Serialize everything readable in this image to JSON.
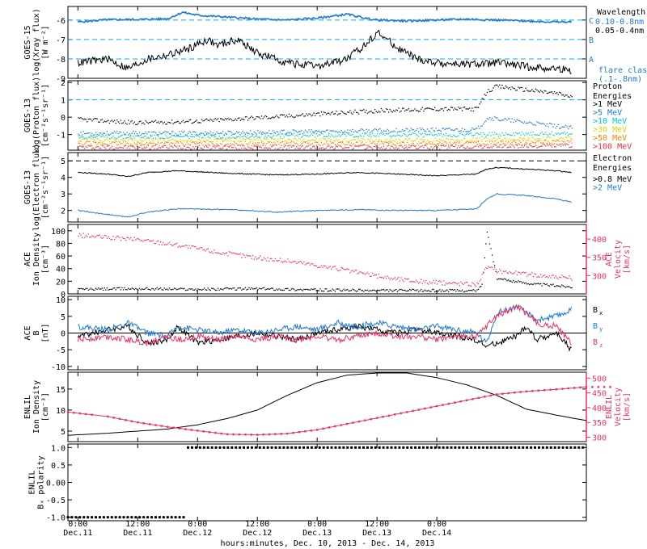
{
  "chart_data": [
    {
      "type": "line",
      "panel": "xray",
      "ylabel_lines": [
        "GOES-15",
        "log(Xray flux)",
        "[W m⁻²]"
      ],
      "ylim": [
        -9,
        -5.3
      ],
      "yticks": [
        "-6",
        "-7",
        "-8",
        "-9"
      ],
      "ytick_values": [
        -6,
        -7,
        -8,
        -9
      ],
      "flare_levels": [
        {
          "label": "C",
          "value": -6
        },
        {
          "label": "B",
          "value": -7
        },
        {
          "label": "A",
          "value": -8
        }
      ],
      "legend_title": "Wavelength",
      "legend": [
        {
          "label": "0.10-0.8nm",
          "color": "#1e78d2"
        },
        {
          "label": "0.05-0.4nm",
          "color": "#000000"
        },
        {
          "label": "flare class",
          "color": "#1e78d2"
        },
        {
          "label": "(.1-.8nm)",
          "color": "#1e78d2"
        }
      ],
      "series": [
        {
          "color": "#1e78d2",
          "x": [
            0,
            6,
            12,
            18,
            21,
            24,
            30,
            36,
            42,
            48,
            54,
            58,
            60,
            66,
            72,
            78,
            84,
            90,
            96,
            99
          ],
          "y": [
            -6.1,
            -5.98,
            -5.97,
            -5.93,
            -5.6,
            -5.75,
            -5.85,
            -5.95,
            -6.0,
            -5.9,
            -5.7,
            -5.92,
            -6.0,
            -6.05,
            -6.0,
            -5.95,
            -6.0,
            -6.05,
            -6.1,
            -6.1
          ]
        },
        {
          "color": "#000000",
          "x": [
            0,
            6,
            10,
            14,
            18,
            22,
            26,
            28,
            32,
            36,
            42,
            48,
            54,
            58,
            60,
            64,
            68,
            72,
            78,
            84,
            90,
            96,
            99
          ],
          "y": [
            -8.2,
            -8.0,
            -8.5,
            -8.0,
            -7.8,
            -7.5,
            -7.0,
            -7.3,
            -7.0,
            -7.7,
            -8.2,
            -8.4,
            -8.0,
            -7.2,
            -6.6,
            -7.4,
            -8.0,
            -8.2,
            -8.3,
            -8.2,
            -8.4,
            -8.5,
            -8.6
          ]
        }
      ]
    },
    {
      "type": "scatter",
      "panel": "protons",
      "ylabel_lines": [
        "GOES-13",
        "log(Proton flux)",
        "[cm⁻²s⁻¹sr⁻¹]"
      ],
      "ylim": [
        -1.9,
        2.1
      ],
      "yticks": [
        "2",
        "1",
        "0",
        "-1"
      ],
      "ytick_values": [
        2,
        1,
        0,
        -1
      ],
      "threshold": 1,
      "legend_title_lines": [
        "Proton",
        "Energies"
      ],
      "legend": [
        {
          "label": ">1 MeV",
          "color": "#000000"
        },
        {
          "label": ">5 MeV",
          "color": "#1e78d2"
        },
        {
          "label": ">10 MeV",
          "color": "#00c8c8"
        },
        {
          "label": ">30 MeV",
          "color": "#e0d000"
        },
        {
          "label": ">50 MeV",
          "color": "#ff8000"
        },
        {
          "label": ">100 MeV",
          "color": "#ee3040"
        }
      ],
      "series": [
        {
          "color": "#000000",
          "x": [
            0,
            12,
            24,
            36,
            48,
            60,
            72,
            80,
            82,
            84,
            90,
            96,
            99
          ],
          "y": [
            -0.1,
            -0.3,
            -0.2,
            0.0,
            0.2,
            0.4,
            0.5,
            0.5,
            1.5,
            1.8,
            1.6,
            1.4,
            1.2
          ]
        },
        {
          "color": "#1e78d2",
          "x": [
            0,
            24,
            48,
            72,
            80,
            82,
            99
          ],
          "y": [
            -0.9,
            -0.9,
            -0.8,
            -0.7,
            -0.7,
            0.0,
            -0.6
          ]
        },
        {
          "color": "#00c8c8",
          "x": [
            0,
            24,
            48,
            72,
            99
          ],
          "y": [
            -1.1,
            -1.1,
            -1.0,
            -1.0,
            -0.9
          ]
        },
        {
          "color": "#e0d000",
          "x": [
            0,
            24,
            48,
            72,
            99
          ],
          "y": [
            -1.3,
            -1.3,
            -1.3,
            -1.3,
            -1.2
          ]
        },
        {
          "color": "#ff8000",
          "x": [
            0,
            24,
            48,
            72,
            99
          ],
          "y": [
            -1.5,
            -1.5,
            -1.5,
            -1.5,
            -1.4
          ]
        },
        {
          "color": "#ee3040",
          "x": [
            0,
            24,
            48,
            72,
            99
          ],
          "y": [
            -1.7,
            -1.7,
            -1.7,
            -1.7,
            -1.6
          ]
        }
      ]
    },
    {
      "type": "line",
      "panel": "electrons",
      "ylabel_lines": [
        "GOES-13",
        "log(Electron flux)",
        "[cm⁻²s⁻¹sr⁻¹]"
      ],
      "ylim": [
        1.3,
        5.5
      ],
      "yticks": [
        "5",
        "4",
        "3",
        "2"
      ],
      "ytick_values": [
        5,
        4,
        3,
        2
      ],
      "threshold": 5,
      "legend_title_lines": [
        "Electron",
        "Energies"
      ],
      "legend": [
        {
          "label": ">0.8 MeV",
          "color": "#000000"
        },
        {
          "label": ">2 MeV",
          "color": "#1e78d2"
        }
      ],
      "series": [
        {
          "color": "#000000",
          "x": [
            0,
            6,
            10,
            14,
            20,
            30,
            40,
            48,
            56,
            64,
            72,
            80,
            82,
            84,
            90,
            96,
            99
          ],
          "y": [
            4.3,
            4.2,
            4.05,
            4.3,
            4.4,
            4.25,
            4.15,
            4.2,
            4.3,
            4.2,
            4.1,
            4.2,
            4.5,
            4.6,
            4.5,
            4.4,
            4.3
          ]
        },
        {
          "color": "#1e78d2",
          "x": [
            0,
            5,
            10,
            14,
            20,
            30,
            40,
            48,
            56,
            64,
            72,
            80,
            82,
            84,
            90,
            96,
            99
          ],
          "y": [
            2.0,
            1.8,
            1.6,
            1.9,
            2.1,
            2.05,
            1.9,
            2.0,
            2.05,
            2.0,
            2.0,
            2.1,
            2.7,
            3.0,
            2.9,
            2.7,
            2.5
          ]
        }
      ]
    },
    {
      "type": "scatter",
      "panel": "ace_plasma",
      "ylabel_lines": [
        "ACE",
        "Ion Density",
        "[cm⁻³]"
      ],
      "ylim": [
        0,
        110
      ],
      "yticks": [
        "100",
        "80",
        "60",
        "40",
        "20",
        "0"
      ],
      "ytick_values": [
        100,
        80,
        60,
        40,
        20,
        0
      ],
      "right_ylabel_lines": [
        "ACE",
        "Velocity",
        "[km/s]"
      ],
      "right_ylim": [
        250,
        440
      ],
      "right_yticks": [
        "400",
        "350",
        "300"
      ],
      "right_ytick_values": [
        400,
        350,
        300
      ],
      "series": [
        {
          "name": "density",
          "color": "#000000",
          "axis": "left",
          "x": [
            0,
            12,
            24,
            36,
            48,
            60,
            72,
            80,
            81,
            82,
            84,
            88,
            92,
            96,
            99
          ],
          "y": [
            8,
            9,
            8,
            9,
            7,
            6,
            6,
            6,
            15,
            100,
            25,
            20,
            16,
            14,
            12
          ]
        },
        {
          "name": "velocity",
          "color": "#ee3060",
          "axis": "right",
          "x": [
            0,
            6,
            12,
            20,
            28,
            36,
            44,
            52,
            58,
            60,
            64,
            70,
            76,
            80,
            82,
            84,
            90,
            96,
            99
          ],
          "y": [
            412,
            405,
            400,
            385,
            365,
            350,
            338,
            320,
            305,
            300,
            292,
            283,
            280,
            278,
            325,
            315,
            305,
            298,
            295
          ]
        }
      ]
    },
    {
      "type": "line",
      "panel": "ace_mag",
      "ylabel_lines": [
        "ACE",
        "B",
        "[nT]"
      ],
      "ylim": [
        -11,
        11
      ],
      "yticks": [
        "10",
        "5",
        "0",
        "-5",
        "-10"
      ],
      "ytick_values": [
        10,
        5,
        0,
        -5,
        -10
      ],
      "zero_line": 0,
      "legend": [
        {
          "label": "B",
          "sub": "x",
          "color": "#000000"
        },
        {
          "label": "B",
          "sub": "y",
          "color": "#1e78d2"
        },
        {
          "label": "B",
          "sub": "z",
          "color": "#ee3060"
        }
      ],
      "series": [
        {
          "color": "#000000",
          "x": [
            0,
            6,
            10,
            14,
            18,
            20,
            24,
            28,
            32,
            36,
            40,
            44,
            48,
            52,
            56,
            60,
            64,
            68,
            72,
            76,
            80,
            82,
            84,
            88,
            90,
            92,
            96,
            99
          ],
          "y": [
            -1,
            1,
            2,
            -3,
            -2,
            2,
            -3,
            -2,
            -1,
            0,
            -1,
            -2,
            0,
            1,
            2,
            1,
            0,
            1,
            0,
            -1,
            -2,
            -4,
            -3,
            -1,
            2,
            -2,
            0,
            -5
          ]
        },
        {
          "color": "#1e78d2",
          "x": [
            0,
            6,
            10,
            14,
            18,
            20,
            24,
            28,
            32,
            36,
            40,
            44,
            48,
            52,
            56,
            60,
            64,
            68,
            72,
            76,
            80,
            82,
            84,
            88,
            90,
            92,
            96,
            99
          ],
          "y": [
            2,
            1,
            3,
            0,
            -1,
            2,
            1,
            0,
            1,
            0,
            1,
            2,
            1,
            3,
            2,
            3,
            2,
            1,
            2,
            1,
            0,
            -3,
            6,
            8,
            6,
            4,
            5,
            7
          ]
        },
        {
          "color": "#ee3060",
          "x": [
            0,
            6,
            10,
            14,
            18,
            20,
            24,
            28,
            32,
            36,
            40,
            44,
            48,
            52,
            56,
            60,
            64,
            68,
            72,
            76,
            80,
            82,
            84,
            88,
            90,
            92,
            96,
            99
          ],
          "y": [
            -2,
            -1,
            -2,
            -3,
            -1,
            -2,
            -1,
            -2,
            -1,
            -2,
            -1,
            -2,
            -1,
            -2,
            -1,
            0,
            -1,
            -1,
            -2,
            -1,
            -1,
            2,
            5,
            8,
            6,
            3,
            2,
            -3
          ]
        }
      ]
    },
    {
      "type": "line",
      "panel": "enlil_plasma",
      "ylabel_lines": [
        "ENLIL",
        "Ion Density",
        "[cm⁻³]"
      ],
      "ylim": [
        2.5,
        19
      ],
      "yticks": [
        "15",
        "10",
        "5"
      ],
      "ytick_values": [
        15,
        10,
        5
      ],
      "right_ylabel_lines": [
        "ENLIL",
        "Velocity",
        "[km/s]"
      ],
      "right_ylim": [
        285,
        520
      ],
      "right_yticks": [
        "500",
        "450",
        "400",
        "350",
        "300"
      ],
      "right_ytick_values": [
        500,
        450,
        400,
        350,
        300
      ],
      "series": [
        {
          "name": "density",
          "color": "#000000",
          "axis": "left",
          "x": [
            -2,
            6,
            12,
            18,
            24,
            30,
            36,
            42,
            48,
            54,
            60,
            66,
            72,
            78,
            84,
            90,
            96,
            102
          ],
          "y": [
            4.0,
            4.5,
            5.0,
            5.5,
            6.5,
            8.0,
            10.0,
            13.5,
            16.5,
            18.3,
            18.8,
            18.8,
            17.7,
            16.0,
            13.5,
            10.2,
            8.8,
            7.5
          ]
        },
        {
          "name": "velocity",
          "color": "#ee3060",
          "axis": "right",
          "x": [
            -2,
            6,
            12,
            18,
            24,
            30,
            36,
            42,
            48,
            54,
            60,
            66,
            72,
            78,
            84,
            90,
            96,
            102
          ],
          "y": [
            385,
            370,
            350,
            335,
            322,
            310,
            308,
            312,
            325,
            345,
            365,
            385,
            405,
            425,
            445,
            455,
            462,
            470
          ]
        }
      ]
    },
    {
      "type": "line",
      "panel": "enlil_polarity",
      "ylabel_lines": [
        "ENLIL",
        "Bₓ polarity"
      ],
      "ylim": [
        -1.1,
        1.1
      ],
      "yticks": [
        "1.0",
        "0.5",
        "0.00",
        "-0.5",
        "-1.0"
      ],
      "ytick_values": [
        1.0,
        0.5,
        0.0,
        -0.5,
        -1.0
      ],
      "series": [
        {
          "color": "#000000",
          "x": [
            -2,
            21.9
          ],
          "y": [
            -1,
            -1
          ]
        },
        {
          "color": "#000000",
          "x": [
            22.1,
            102
          ],
          "y": [
            1,
            1
          ]
        }
      ]
    }
  ],
  "x_axis": {
    "xlim": [
      -2,
      102
    ],
    "ticks": [
      {
        "x": 0,
        "time": "0:00",
        "date": "Dec.11"
      },
      {
        "x": 12,
        "time": "12:00",
        "date": "Dec.11"
      },
      {
        "x": 24,
        "time": "0:00",
        "date": "Dec.12"
      },
      {
        "x": 36,
        "time": "12:00",
        "date": "Dec.12"
      },
      {
        "x": 48,
        "time": "0:00",
        "date": "Dec.13"
      },
      {
        "x": 60,
        "time": "12:00",
        "date": "Dec.13"
      },
      {
        "x": 72,
        "time": "0:00",
        "date": "Dec.14"
      }
    ],
    "xlabel": "hours:minutes, Dec. 10, 2013 - Dec. 14, 2013"
  },
  "colors": {
    "blue": "#1e78d2",
    "cyan_dashed": "#00b4e6",
    "red": "#ee3060"
  }
}
